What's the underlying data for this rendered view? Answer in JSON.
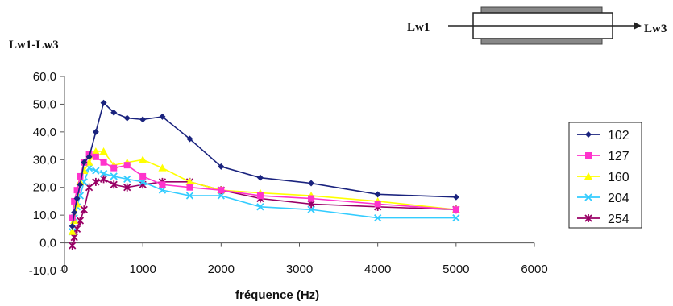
{
  "chart_data": {
    "type": "line",
    "title": "",
    "xlabel": "fréquence (Hz)",
    "ylabel": "Lw1-Lw3",
    "xlim": [
      0,
      6000
    ],
    "ylim": [
      -10,
      60
    ],
    "xticks": [
      "0",
      "1000",
      "2000",
      "3000",
      "4000",
      "5000",
      "6000"
    ],
    "yticks": [
      "-10,0",
      "0,0",
      "10,0",
      "20,0",
      "30,0",
      "40,0",
      "50,0",
      "60,0"
    ],
    "x": [
      100,
      125,
      160,
      200,
      250,
      315,
      400,
      500,
      630,
      800,
      1000,
      1250,
      1600,
      2000,
      2500,
      3150,
      4000,
      5000
    ],
    "series": [
      {
        "name": "102",
        "color": "#1a237e",
        "marker": "diamond",
        "values": [
          6,
          11,
          16,
          21,
          29,
          31,
          40,
          50.5,
          47,
          45,
          44.5,
          45.5,
          37.5,
          27.5,
          23.5,
          21.5,
          17.5,
          16.5
        ]
      },
      {
        "name": "127",
        "color": "#ff33cc",
        "marker": "square",
        "values": [
          9,
          15,
          19,
          24,
          29,
          32,
          31,
          29,
          27,
          28,
          24,
          21,
          20,
          19,
          17,
          16,
          14,
          12
        ]
      },
      {
        "name": "160",
        "color": "#ffff00",
        "marker": "triangle",
        "values": [
          4,
          8,
          14,
          22,
          26,
          29,
          33,
          33,
          28,
          29,
          30,
          27,
          22,
          19,
          18,
          17,
          15,
          12
        ]
      },
      {
        "name": "204",
        "color": "#33ccff",
        "marker": "x",
        "values": [
          4,
          9,
          13,
          17,
          22,
          27,
          26,
          25,
          24,
          23,
          22,
          19,
          17,
          17,
          13,
          12,
          9,
          9
        ]
      },
      {
        "name": "254",
        "color": "#990066",
        "marker": "star",
        "values": [
          -1,
          2,
          5,
          8,
          12,
          20,
          22,
          23,
          21,
          20,
          21,
          22,
          22,
          19,
          16,
          14,
          13,
          12
        ]
      }
    ],
    "legend_position": "right",
    "grid": false
  },
  "diagram": {
    "left_label": "Lw1",
    "right_label": "Lw3"
  }
}
